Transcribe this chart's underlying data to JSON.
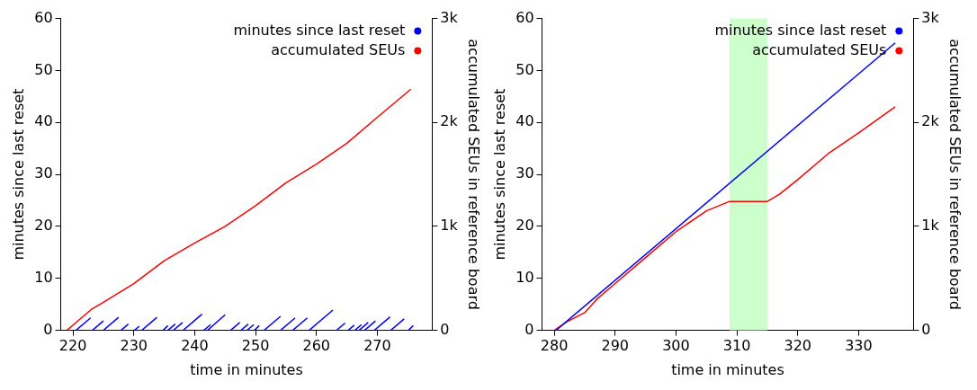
{
  "chart_data": [
    {
      "type": "line",
      "xlabel": "time in minutes",
      "ylabel": "minutes since last reset",
      "y2label": "accumulated SEUs in reference board",
      "xlim": [
        218,
        279
      ],
      "xticks": [
        220,
        230,
        240,
        250,
        260,
        270
      ],
      "ylim": [
        0,
        60
      ],
      "yticks": [
        0,
        10,
        20,
        30,
        40,
        50,
        60
      ],
      "y2lim": [
        0,
        3000
      ],
      "y2ticks": [
        {
          "value": 0,
          "label": "0"
        },
        {
          "value": 1000,
          "label": "1k"
        },
        {
          "value": 2000,
          "label": "2k"
        },
        {
          "value": 3000,
          "label": "3k"
        }
      ],
      "legend": "top right",
      "grid": false,
      "series": [
        {
          "name": "minutes since last reset",
          "color": "#0000ff",
          "x": [
            220.5,
            222.9
          ],
          "values": [
            0,
            2.4
          ]
        },
        {
          "color": "#0000ff",
          "x": [
            223.2,
            225.0
          ],
          "values": [
            0,
            1.8
          ]
        },
        {
          "color": "#0000ff",
          "x": [
            225.0,
            227.5
          ],
          "values": [
            0,
            2.5
          ]
        },
        {
          "color": "#0000ff",
          "x": [
            227.9,
            229.1
          ],
          "values": [
            0,
            1.2
          ]
        },
        {
          "color": "#0000ff",
          "x": [
            230.1,
            230.9
          ],
          "values": [
            0,
            0.8
          ]
        },
        {
          "color": "#0000ff",
          "x": [
            231.3,
            233.8
          ],
          "values": [
            0,
            2.5
          ]
        },
        {
          "color": "#0000ff",
          "x": [
            234.8,
            235.6
          ],
          "values": [
            0,
            0.9
          ]
        },
        {
          "color": "#0000ff",
          "x": [
            235.6,
            236.8
          ],
          "values": [
            0,
            1.2
          ]
        },
        {
          "color": "#0000ff",
          "x": [
            236.5,
            238.0
          ],
          "values": [
            0,
            1.5
          ]
        },
        {
          "color": "#0000ff",
          "x": [
            238.1,
            241.2
          ],
          "values": [
            0,
            3.1
          ]
        },
        {
          "color": "#0000ff",
          "x": [
            241.5,
            242.6
          ],
          "values": [
            0,
            1.1
          ]
        },
        {
          "color": "#0000ff",
          "x": [
            242.1,
            245.0
          ],
          "values": [
            0,
            3
          ]
        },
        {
          "color": "#0000ff",
          "x": [
            245.9,
            247.4
          ],
          "values": [
            0,
            1.5
          ]
        },
        {
          "color": "#0000ff",
          "x": [
            247.6,
            248.8
          ],
          "values": [
            0,
            1.2
          ]
        },
        {
          "color": "#0000ff",
          "x": [
            248.6,
            249.7
          ],
          "values": [
            0,
            1.1
          ]
        },
        {
          "color": "#0000ff",
          "x": [
            249.8,
            250.6
          ],
          "values": [
            0,
            0.9
          ]
        },
        {
          "color": "#0000ff",
          "x": [
            251.4,
            254.1
          ],
          "values": [
            0,
            2.7
          ]
        },
        {
          "color": "#0000ff",
          "x": [
            254.1,
            256.5
          ],
          "values": [
            0,
            2.4
          ]
        },
        {
          "color": "#0000ff",
          "x": [
            256.1,
            258.5
          ],
          "values": [
            0,
            2.4
          ]
        },
        {
          "color": "#0000ff",
          "x": [
            258.8,
            262.7
          ],
          "values": [
            0,
            3.9
          ]
        },
        {
          "color": "#0000ff",
          "x": [
            263.3,
            264.7
          ],
          "values": [
            0,
            1.4
          ]
        },
        {
          "color": "#0000ff",
          "x": [
            265.2,
            266.2
          ],
          "values": [
            0,
            1.0
          ]
        },
        {
          "color": "#0000ff",
          "x": [
            266.3,
            267.4
          ],
          "values": [
            0,
            1.1
          ]
        },
        {
          "color": "#0000ff",
          "x": [
            267.0,
            268.5
          ],
          "values": [
            0,
            1.5
          ]
        },
        {
          "color": "#0000ff",
          "x": [
            267.9,
            269.7
          ],
          "values": [
            0,
            1.8
          ]
        },
        {
          "color": "#0000ff",
          "x": [
            269.5,
            272.1
          ],
          "values": [
            0,
            2.6
          ]
        },
        {
          "color": "#0000ff",
          "x": [
            272.2,
            274.4
          ],
          "values": [
            0,
            2.2
          ]
        },
        {
          "color": "#0000ff",
          "x": [
            275.1,
            275.9
          ],
          "values": [
            0,
            0.9
          ]
        },
        {
          "name": "accumulated SEUs",
          "color": "#ff0000",
          "axis": "y2",
          "x": [
            219,
            221,
            223,
            225,
            230,
            235,
            240,
            245,
            250,
            255,
            260,
            265,
            270,
            275.5
          ],
          "values": [
            0,
            100,
            200,
            270,
            450,
            670,
            840,
            1000,
            1200,
            1420,
            1600,
            1800,
            2050,
            2320
          ]
        }
      ]
    },
    {
      "type": "line",
      "xlabel": "time in minutes",
      "ylabel": "minutes since last reset",
      "y2label": "accumulated SEUs in reference board",
      "xlim": [
        278,
        339
      ],
      "xticks": [
        280,
        290,
        300,
        310,
        320,
        330
      ],
      "ylim": [
        0,
        60
      ],
      "yticks": [
        0,
        10,
        20,
        30,
        40,
        50,
        60
      ],
      "y2lim": [
        0,
        3000
      ],
      "y2ticks": [
        {
          "value": 0,
          "label": "0"
        },
        {
          "value": 1000,
          "label": "1k"
        },
        {
          "value": 2000,
          "label": "2k"
        },
        {
          "value": 3000,
          "label": "3k"
        }
      ],
      "legend": "top right",
      "grid": false,
      "bands": [
        {
          "axis": "x",
          "from": 308.8,
          "to": 315,
          "color": "#ccffcc"
        }
      ],
      "series": [
        {
          "name": "minutes since last reset",
          "color": "#0000ff",
          "x": [
            280.3,
            336
          ],
          "values": [
            0,
            55.3
          ]
        },
        {
          "name": "accumulated SEUs",
          "color": "#ff0000",
          "axis": "y2",
          "x": [
            280,
            282,
            285,
            287,
            290,
            295,
            300,
            305,
            308.8,
            315,
            317,
            320,
            325,
            330,
            336
          ],
          "values": [
            0,
            80,
            170,
            300,
            450,
            700,
            950,
            1150,
            1240,
            1240,
            1310,
            1450,
            1700,
            1900,
            2150
          ]
        }
      ]
    }
  ]
}
